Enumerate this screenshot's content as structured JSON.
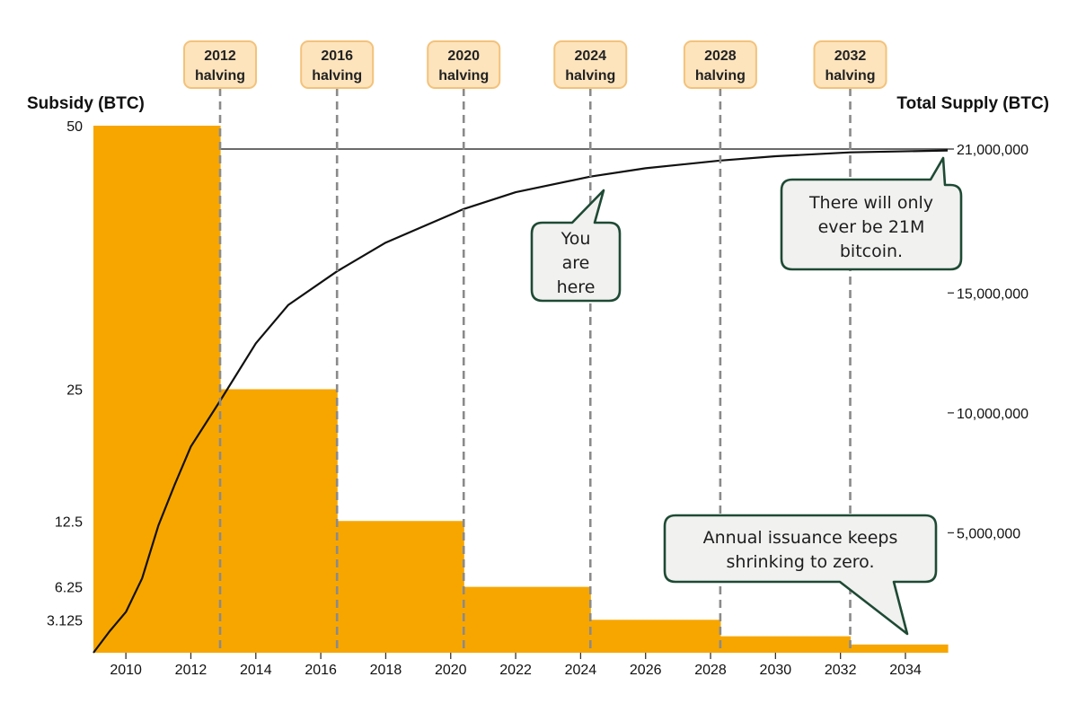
{
  "chart_data": {
    "type": "bar",
    "y_left_label": "Subsidy (BTC)",
    "y_right_label": "Total Supply (BTC)",
    "x_ticks": [
      "2010",
      "2012",
      "2014",
      "2016",
      "2018",
      "2020",
      "2022",
      "2024",
      "2026",
      "2028",
      "2030",
      "2032",
      "2034"
    ],
    "left_ticks": [
      "50",
      "25",
      "12.5",
      "6.25",
      "3.125"
    ],
    "right_ticks": [
      "21,000,000",
      "15,000,000",
      "10,000,000",
      "5,000,000"
    ],
    "xlim": [
      2009.0,
      2035.3
    ],
    "subsidy_bars": [
      {
        "start": 2009.0,
        "end": 2012.9,
        "value": 50
      },
      {
        "start": 2012.9,
        "end": 2016.5,
        "value": 25
      },
      {
        "start": 2016.5,
        "end": 2020.4,
        "value": 12.5
      },
      {
        "start": 2020.4,
        "end": 2024.3,
        "value": 6.25
      },
      {
        "start": 2024.3,
        "end": 2028.3,
        "value": 3.125
      },
      {
        "start": 2028.3,
        "end": 2032.3,
        "value": 1.5625
      },
      {
        "start": 2032.3,
        "end": 2035.3,
        "value": 0.78125
      }
    ],
    "supply_series": {
      "name": "Total Supply",
      "points": [
        [
          2009.0,
          0
        ],
        [
          2009.5,
          900000
        ],
        [
          2010.0,
          1700000
        ],
        [
          2010.5,
          3100000
        ],
        [
          2011.0,
          5300000
        ],
        [
          2011.5,
          7000000
        ],
        [
          2012.0,
          8600000
        ],
        [
          2012.9,
          10500000
        ],
        [
          2014.0,
          12900000
        ],
        [
          2015.0,
          14500000
        ],
        [
          2016.5,
          15900000
        ],
        [
          2018.0,
          17100000
        ],
        [
          2020.4,
          18500000
        ],
        [
          2022.0,
          19200000
        ],
        [
          2024.3,
          19850000
        ],
        [
          2026.0,
          20200000
        ],
        [
          2028.3,
          20520000
        ],
        [
          2030.0,
          20700000
        ],
        [
          2032.3,
          20860000
        ],
        [
          2035.3,
          20940000
        ]
      ]
    },
    "max_supply": 21000000,
    "halvings": [
      {
        "year": 2012.9,
        "label": [
          "2012",
          "halving"
        ]
      },
      {
        "year": 2016.5,
        "label": [
          "2016",
          "halving"
        ]
      },
      {
        "year": 2020.4,
        "label": [
          "2020",
          "halving"
        ]
      },
      {
        "year": 2024.3,
        "label": [
          "2024",
          "halving"
        ]
      },
      {
        "year": 2028.3,
        "label": [
          "2028",
          "halving"
        ]
      },
      {
        "year": 2032.3,
        "label": [
          "2032",
          "halving"
        ]
      }
    ],
    "callouts": [
      {
        "id": "you-are-here",
        "lines": [
          "You",
          "are",
          "here"
        ]
      },
      {
        "id": "21m-cap",
        "lines": [
          "There will only",
          "ever be 21M",
          "bitcoin."
        ]
      },
      {
        "id": "issuance",
        "lines": [
          "Annual issuance keeps",
          "shrinking to zero."
        ]
      }
    ],
    "colors": {
      "bar": "#f7a600",
      "halving_box_fill": "#fde4bd",
      "halving_box_stroke": "#f3c27a",
      "halving_line": "#8a8a8a",
      "callout_fill": "#f1f1f0",
      "callout_stroke": "#1e4a34",
      "line": "#111111"
    }
  }
}
